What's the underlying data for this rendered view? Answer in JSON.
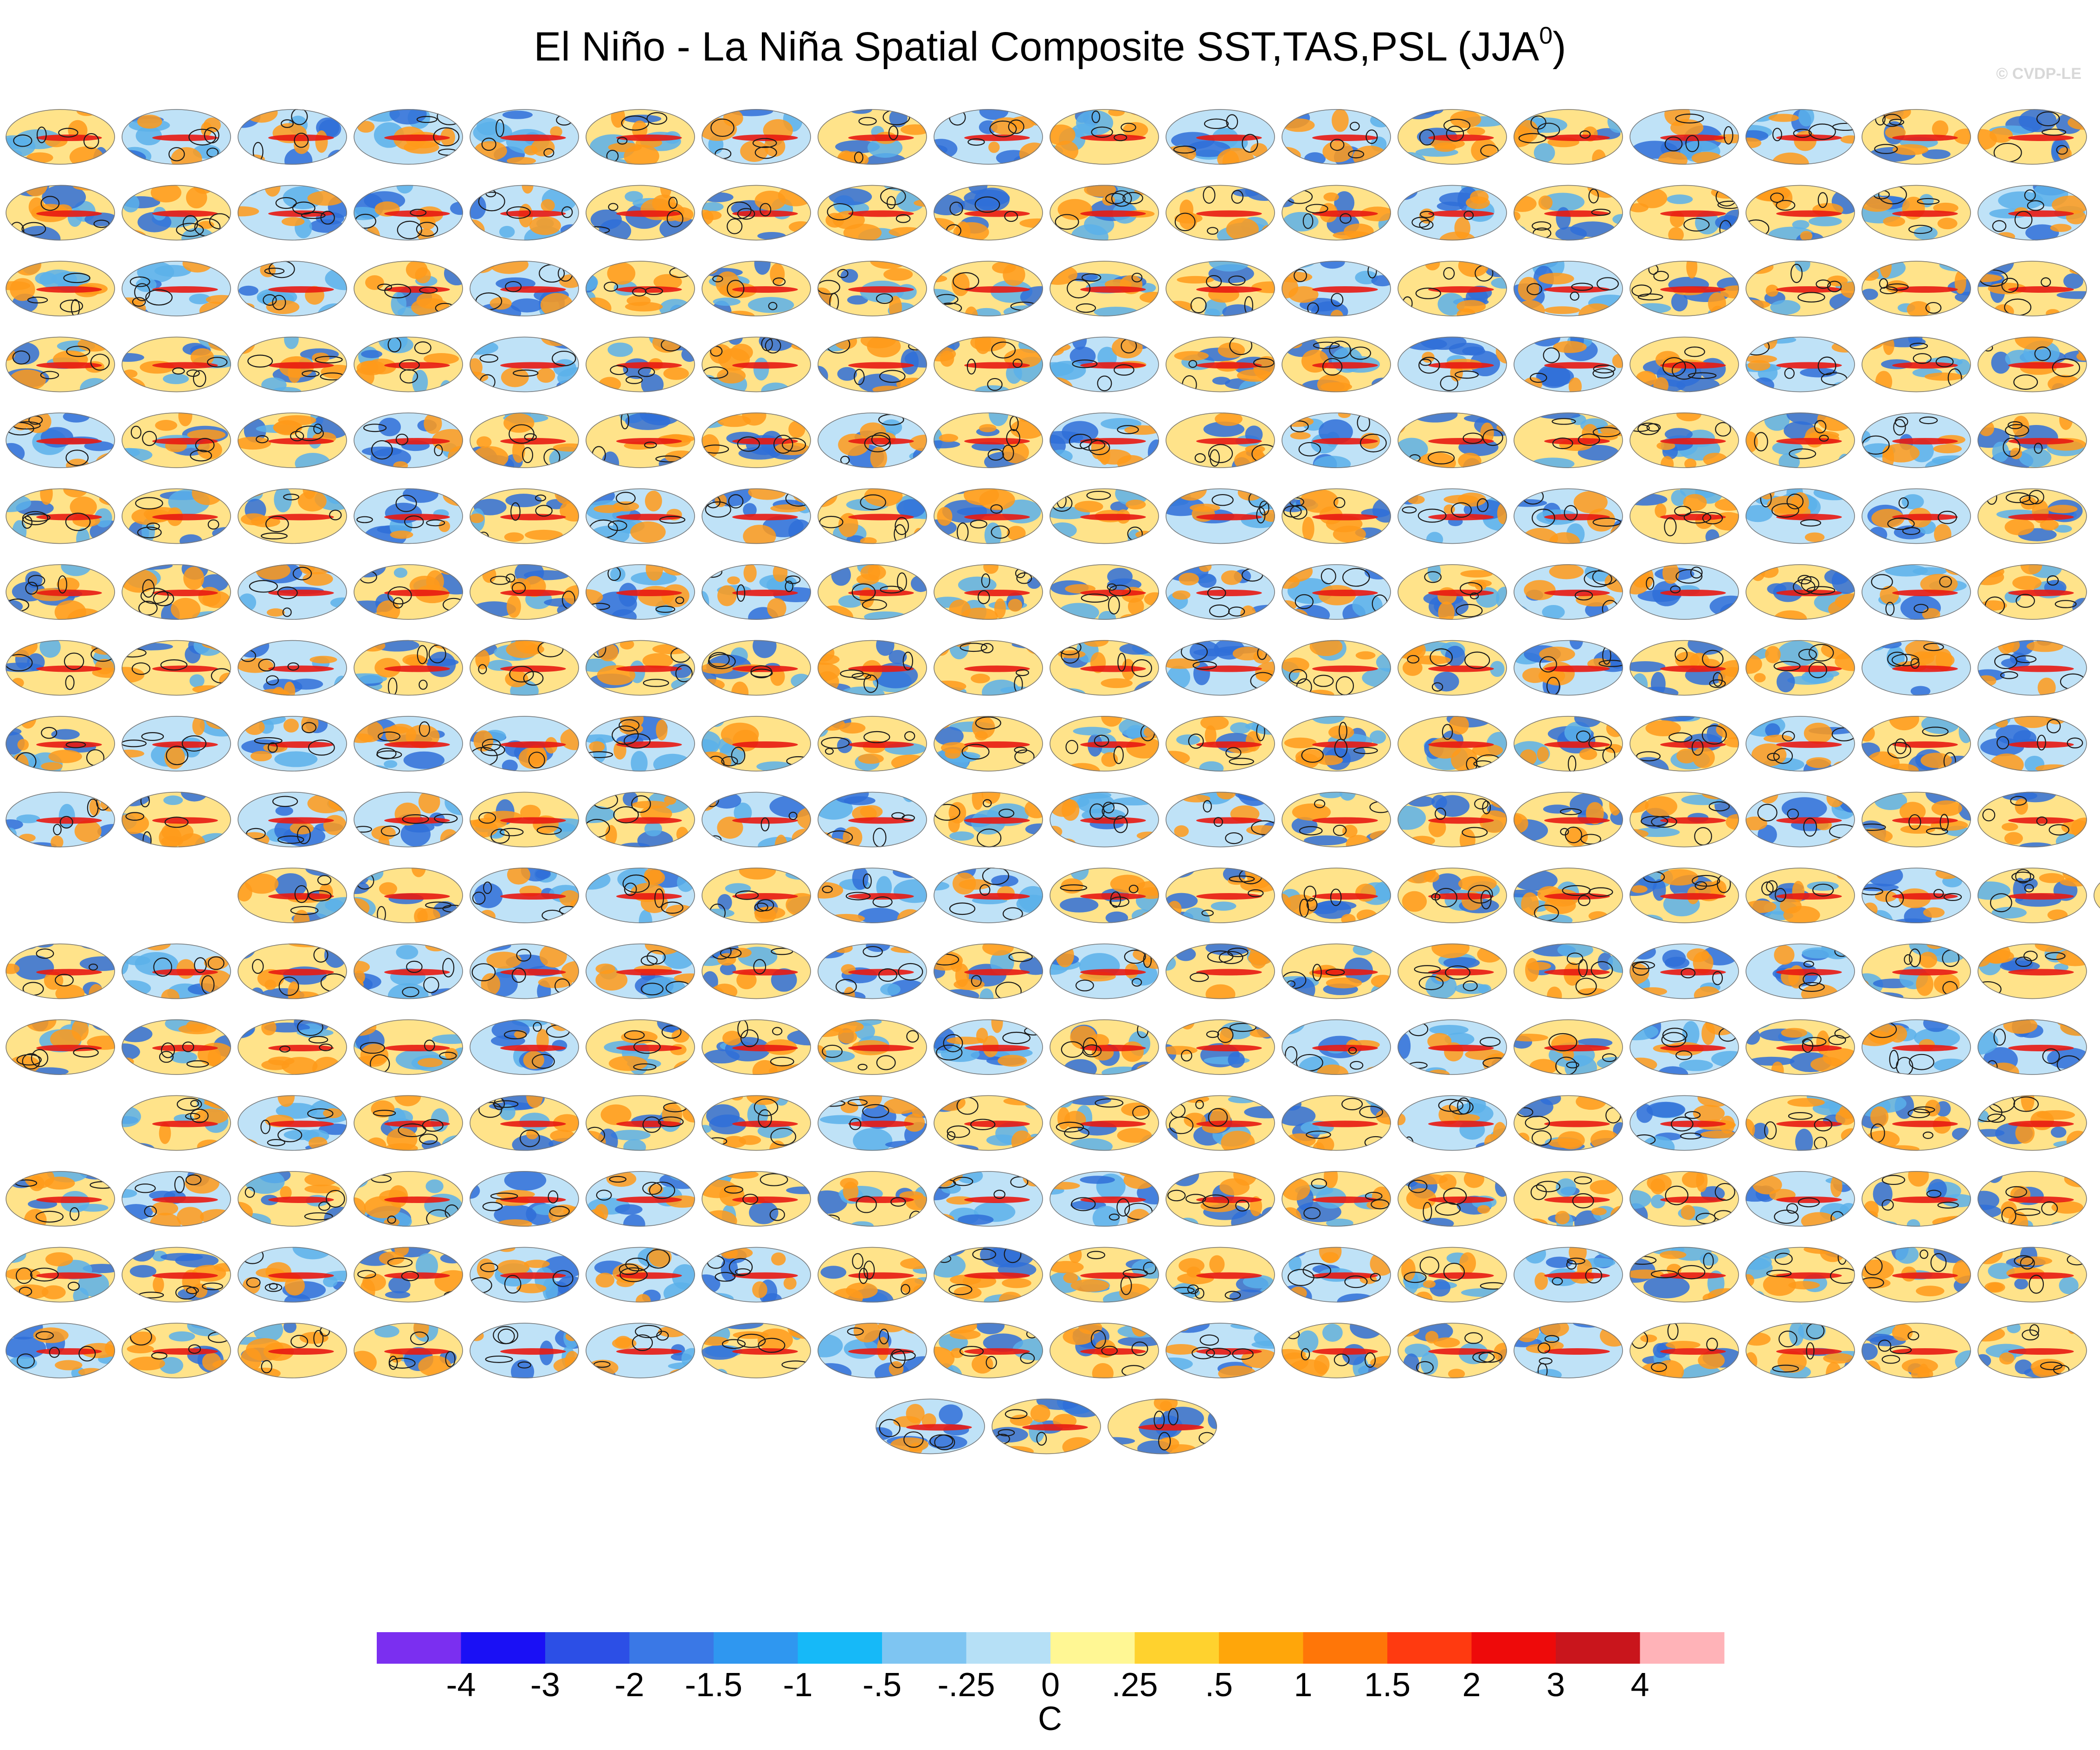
{
  "figure": {
    "title": "El Niño - La Niña Spatial Composite SST,TAS,PSL (JJA",
    "title_superscript": "0",
    "title_close": ")",
    "watermark": "© CVDP-LE"
  },
  "chart_data": {
    "type": "heatmap",
    "title": "El Niño - La Niña Spatial Composite SST,TAS,PSL (JJA0)",
    "panel_rows": [
      18,
      18,
      18,
      18,
      18,
      18,
      18,
      18,
      18,
      18,
      17,
      18,
      18,
      17,
      18,
      18,
      18,
      3
    ],
    "row_start_column": [
      0,
      0,
      0,
      0,
      0,
      0,
      0,
      0,
      0,
      0,
      2,
      0,
      0,
      1,
      0,
      0,
      0,
      7.5
    ],
    "colorbar": {
      "units": "C",
      "levels": [
        "-4",
        "-3",
        "-2",
        "-1.5",
        "-1",
        "-.5",
        "-.25",
        "0",
        ".25",
        ".5",
        "1",
        "1.5",
        "2",
        "3",
        "4"
      ],
      "colors": [
        "#7b2ff0",
        "#1a10f5",
        "#2c4fe6",
        "#3a78e6",
        "#2f97f0",
        "#16b9f8",
        "#7ec5f2",
        "#b6e0f6",
        "#fff794",
        "#ffd22e",
        "#ffa60a",
        "#ff7608",
        "#ff3a10",
        "#ee0a0a",
        "#c9151c",
        "#ffb3b8"
      ]
    },
    "map_palette": {
      "ocean_warm": "#ff9a1a",
      "ocean_hot": "#e81a12",
      "ocean_cool": "#5ab0ea",
      "ocean_cold": "#2f6fd8",
      "contour": "#1a1a1a"
    }
  }
}
